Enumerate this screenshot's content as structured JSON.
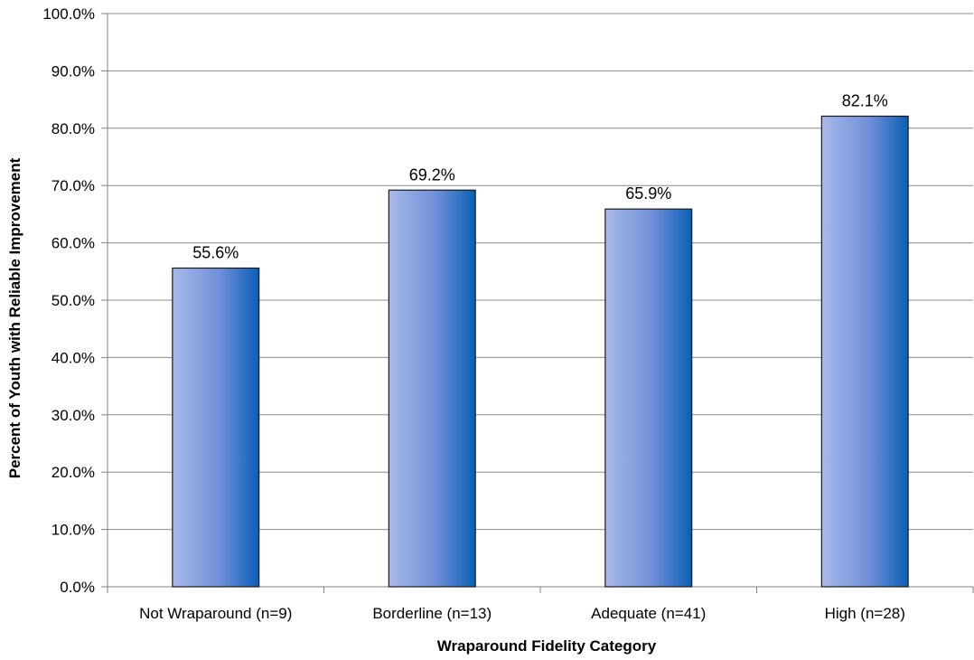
{
  "chart_data": {
    "type": "bar",
    "categories": [
      "Not Wraparound (n=9)",
      "Borderline (n=13)",
      "Adequate (n=41)",
      "High (n=28)"
    ],
    "values": [
      55.6,
      69.2,
      65.9,
      82.1
    ],
    "data_labels": [
      "55.6%",
      "69.2%",
      "65.9%",
      "82.1%"
    ],
    "title": "",
    "xlabel": "Wraparound Fidelity Category",
    "ylabel": "Percent of Youth with Reliable Improvement",
    "ylim": [
      0,
      100
    ],
    "yticks": [
      0,
      10,
      20,
      30,
      40,
      50,
      60,
      70,
      80,
      90,
      100
    ],
    "ytick_labels": [
      "0.0%",
      "10.0%",
      "20.0%",
      "30.0%",
      "40.0%",
      "50.0%",
      "60.0%",
      "70.0%",
      "80.0%",
      "90.0%",
      "100.0%"
    ],
    "grid": true,
    "legend": "none",
    "colors": {
      "bar_light": "#a9b9ea",
      "bar_mid": "#6f8fd8",
      "bar_dark": "#0a5fb6",
      "bar_outline": "#1a1a1a",
      "grid": "#8c8c8c",
      "axis": "#808080"
    }
  }
}
